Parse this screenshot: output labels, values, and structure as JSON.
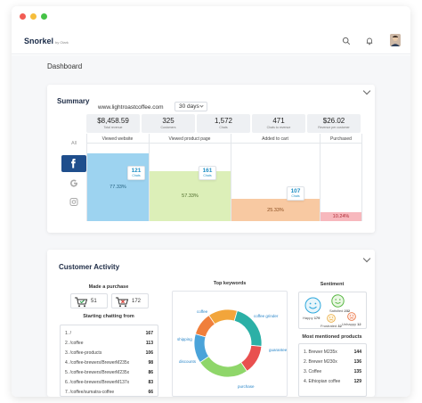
{
  "app": {
    "logo": "Snorkel",
    "logo_sub": "by Olark",
    "page_title": "Dashboard",
    "icons": [
      "search-icon",
      "bell-icon",
      "avatar"
    ]
  },
  "colors": {
    "accent": "#1f8fc4",
    "viewed_website": "#9dd3f0",
    "viewed_product": "#dcefb8",
    "added_to_cart": "#f8c9a2",
    "purchased": "#f7b8bd",
    "facebook": "#1f4e8c"
  },
  "summary": {
    "title": "Summary",
    "url": "www.lightroastcoffee.com",
    "range": "30 days",
    "metrics": [
      {
        "value": "$8,458.59",
        "label": "Total revenue"
      },
      {
        "value": "325",
        "label": "Customers"
      },
      {
        "value": "1,572",
        "label": "Chats"
      },
      {
        "value": "471",
        "label": "Chats to revenue"
      },
      {
        "value": "$26.02",
        "label": "Revenue per customer"
      }
    ],
    "sources": {
      "all": "All",
      "items": [
        "facebook-icon",
        "google-icon",
        "instagram-icon"
      ],
      "selected": "facebook-icon"
    },
    "stages": [
      {
        "label": "Viewed website",
        "percent": "77.33%",
        "level": 77.33,
        "chats": "121"
      },
      {
        "label": "Viewed product page",
        "percent": "57.33%",
        "level": 57.33,
        "chats": "161"
      },
      {
        "label": "Added to cart",
        "percent": "25.33%",
        "level": 25.33,
        "chats": "107"
      },
      {
        "label": "Purchased",
        "percent": "10.24%",
        "level": 10.24,
        "chats": ""
      }
    ],
    "chats_label": "Chats"
  },
  "activity": {
    "title": "Customer Activity",
    "purchase": {
      "heading": "Made a purchase",
      "with_chat": "51",
      "without_chat": "172"
    },
    "starting_chat": {
      "heading": "Starting chatting from",
      "rows": [
        {
          "label": "1. /",
          "value": "167"
        },
        {
          "label": "2. /coffee",
          "value": "113"
        },
        {
          "label": "3. /coffee-products",
          "value": "106"
        },
        {
          "label": "4. /coffee-brewers/BrewerM235x",
          "value": "98"
        },
        {
          "label": "5. /coffee-brewers/BrewerM235x",
          "value": "86"
        },
        {
          "label": "6. /coffee-brewers/BrewerM137x",
          "value": "83"
        },
        {
          "label": "7. /coffee/sumatra-coffee",
          "value": "66"
        }
      ]
    },
    "keywords": {
      "heading": "Top keywords",
      "items": [
        {
          "label": "coffee",
          "value": 14,
          "color": "#f2a53b"
        },
        {
          "label": "coffee grinder",
          "value": 22,
          "color": "#2bb0a6"
        },
        {
          "label": "guarantee",
          "value": 14,
          "color": "#e9504f"
        },
        {
          "label": "purchase",
          "value": 25,
          "color": "#8fd66a"
        },
        {
          "label": "discounts",
          "value": 14,
          "color": "#4aa3d9"
        },
        {
          "label": "shipping",
          "value": 11,
          "color": "#f07f3c"
        }
      ]
    },
    "sentiment": {
      "heading": "Sentiment",
      "items": [
        {
          "label": "Happy",
          "value": "179"
        },
        {
          "label": "Satisfied",
          "value": "232"
        },
        {
          "label": "Frustrated",
          "value": "32"
        },
        {
          "label": "Unhappy",
          "value": "12"
        }
      ]
    },
    "products": {
      "heading": "Most mentioned products",
      "rows": [
        {
          "label": "1. Brewer M235x",
          "value": "144"
        },
        {
          "label": "2. Brewer M230x",
          "value": "136"
        },
        {
          "label": "3. Coffee",
          "value": "135"
        },
        {
          "label": "4. Ethiopian coffee",
          "value": "129"
        }
      ]
    }
  }
}
